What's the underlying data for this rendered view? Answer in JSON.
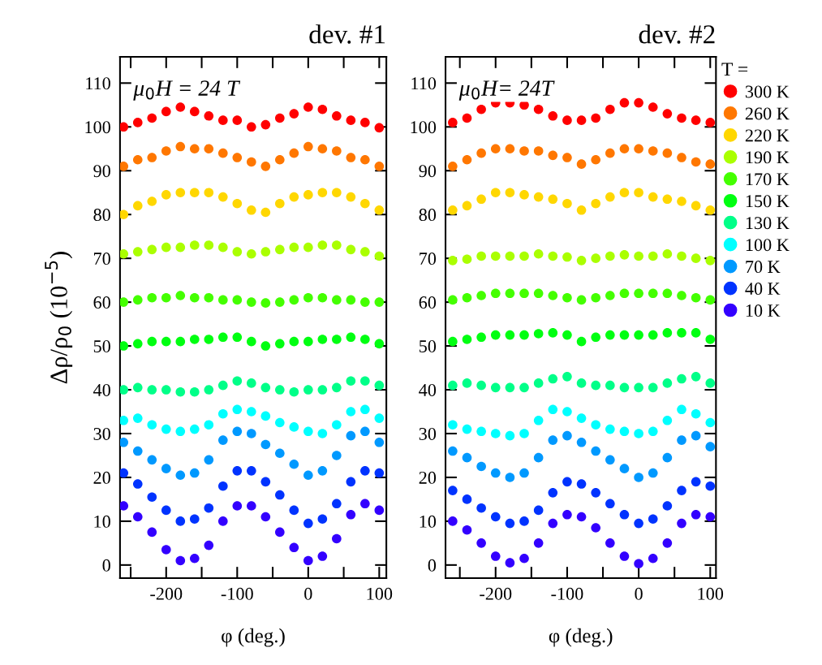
{
  "chart_data": [
    {
      "type": "scatter",
      "title": "dev. #1",
      "xlabel": "φ (deg.)",
      "ylabel": "Δρ/ρ$_{0}$ (10$^{−5}$)",
      "annotations": [
        "μ$_{0}$H = 24 T"
      ],
      "marker": "circle",
      "legend": false,
      "x": [
        -260,
        -240,
        -220,
        -200,
        -180,
        -160,
        -140,
        -120,
        -100,
        -80,
        -60,
        -40,
        -20,
        0,
        20,
        40,
        60,
        80,
        100
      ],
      "xlim": [
        -265,
        110
      ],
      "ylim": [
        -3,
        116
      ],
      "xticks": [
        {
          "value": -250,
          "label": null
        },
        -200,
        {
          "value": -150,
          "label": null
        },
        -100,
        {
          "value": -50,
          "label": null
        },
        0,
        {
          "value": 50,
          "label": null
        },
        100
      ],
      "yticks": [
        0,
        10,
        20,
        30,
        40,
        50,
        60,
        70,
        80,
        90,
        100,
        110
      ],
      "series": [
        {
          "color": "#ff0000",
          "values": [
            100,
            101,
            102,
            103.5,
            104.5,
            103.5,
            102.5,
            101.5,
            101.5,
            100,
            100.5,
            102,
            103,
            104.5,
            104,
            102.5,
            101.5,
            101,
            99.8
          ]
        },
        {
          "color": "#ff7700",
          "values": [
            91,
            92.5,
            93,
            94.5,
            95.5,
            95,
            95,
            94,
            93,
            92,
            91,
            92.5,
            94,
            95.5,
            95,
            94.5,
            93,
            92.5,
            91
          ]
        },
        {
          "color": "#ffd700",
          "values": [
            80,
            82,
            83,
            84.5,
            85,
            85,
            85,
            84,
            82.5,
            81,
            80.5,
            82.5,
            84,
            84.5,
            85,
            85,
            84,
            82.5,
            81
          ]
        },
        {
          "color": "#aaff00",
          "values": [
            71,
            71.5,
            72,
            72.5,
            72.5,
            73,
            73,
            72.5,
            71.5,
            71,
            71.5,
            72,
            72.5,
            72.5,
            73,
            73,
            72,
            71.5,
            70.5
          ]
        },
        {
          "color": "#44ff00",
          "values": [
            60,
            60.5,
            61,
            61,
            61.5,
            61,
            61,
            60.5,
            60.5,
            60,
            59.8,
            60,
            60.5,
            61,
            61,
            60.5,
            60.5,
            60,
            60
          ]
        },
        {
          "color": "#00ff11",
          "values": [
            50,
            50.5,
            51,
            51,
            51,
            51.5,
            51.5,
            52,
            52,
            51,
            50,
            50.5,
            51,
            51,
            51.5,
            51.5,
            52,
            51.5,
            50.5
          ]
        },
        {
          "color": "#00ff88",
          "values": [
            40,
            40.5,
            40,
            40,
            39.5,
            39.5,
            40,
            41,
            42,
            41.5,
            40.5,
            40,
            39.5,
            40,
            40,
            40.5,
            42,
            42,
            41
          ]
        },
        {
          "color": "#00ffff",
          "values": [
            33,
            33.5,
            32,
            31,
            30.5,
            31,
            32,
            34.5,
            35.5,
            35,
            34,
            32.5,
            31.5,
            30.5,
            30,
            32,
            35,
            35.5,
            33.5
          ]
        },
        {
          "color": "#0099ff",
          "values": [
            28,
            26,
            24,
            22,
            20.5,
            21,
            24,
            28.5,
            30.5,
            30,
            27.5,
            25.5,
            23,
            20.5,
            21.5,
            25,
            29.5,
            30.5,
            28
          ]
        },
        {
          "color": "#0033ff",
          "values": [
            21,
            18.5,
            15.5,
            12.5,
            10,
            10.5,
            13,
            18,
            21.5,
            21.5,
            19,
            16,
            12.5,
            9.5,
            10.5,
            14,
            19,
            21.5,
            21
          ]
        },
        {
          "color": "#3300ff",
          "values": [
            13.5,
            11,
            7.5,
            3.5,
            1,
            1.5,
            4.5,
            10,
            13.5,
            13.5,
            11,
            7.5,
            4,
            1,
            2,
            6,
            11.5,
            14,
            12.5
          ]
        }
      ]
    },
    {
      "type": "scatter",
      "title": "dev. #2",
      "xlabel": "φ (deg.)",
      "annotations": [
        "μ$_{0}$H= 24T"
      ],
      "marker": "circle",
      "legend": "right",
      "legend_title": "T =",
      "x": [
        -260,
        -240,
        -220,
        -200,
        -180,
        -160,
        -140,
        -120,
        -100,
        -80,
        -60,
        -40,
        -20,
        0,
        20,
        40,
        60,
        80,
        100
      ],
      "xlim": [
        -270,
        108
      ],
      "ylim": [
        -3,
        116
      ],
      "xticks": [
        {
          "value": -250,
          "label": null
        },
        -200,
        {
          "value": -150,
          "label": null
        },
        -100,
        {
          "value": -50,
          "label": null
        },
        0,
        {
          "value": 50,
          "label": null
        },
        100
      ],
      "yticks": [
        0,
        10,
        20,
        30,
        40,
        50,
        60,
        70,
        80,
        90,
        100,
        110
      ],
      "series": [
        {
          "name": "300 K",
          "color": "#ff0000",
          "values": [
            101,
            102,
            104,
            105.5,
            105.5,
            105,
            104,
            102.5,
            101.5,
            101.5,
            102,
            104,
            105.5,
            105.5,
            104.5,
            103,
            102,
            101.5,
            101
          ]
        },
        {
          "name": "260 K",
          "color": "#ff7700",
          "values": [
            91,
            92.5,
            94,
            95,
            95,
            94.5,
            94.5,
            93.5,
            93,
            91.5,
            92.5,
            94,
            95,
            95,
            94.5,
            94,
            93,
            92,
            91.5
          ]
        },
        {
          "name": "220 K",
          "color": "#ffd700",
          "values": [
            81,
            82,
            83.5,
            85,
            85,
            84.5,
            84,
            83.5,
            82.5,
            81,
            82.5,
            84,
            85,
            85,
            84,
            83.5,
            83,
            82,
            81
          ]
        },
        {
          "name": "190 K",
          "color": "#aaff00",
          "values": [
            69.5,
            69.8,
            70.5,
            70.5,
            70.5,
            70.5,
            71,
            70.5,
            70.3,
            69.5,
            70,
            70.5,
            70.8,
            70.5,
            70.5,
            71,
            70.5,
            70,
            69.5
          ]
        },
        {
          "name": "170 K",
          "color": "#44ff00",
          "values": [
            60.5,
            61,
            61.5,
            62,
            62,
            62,
            62,
            61.5,
            61,
            60.5,
            61,
            61.5,
            62,
            62,
            62,
            62,
            61.5,
            61,
            60.5
          ]
        },
        {
          "name": "150 K",
          "color": "#00ff11",
          "values": [
            51,
            51.5,
            52,
            52.5,
            52.5,
            52.5,
            52.8,
            53,
            52.5,
            51,
            52,
            52.5,
            52.5,
            52.5,
            52.5,
            53,
            53,
            53,
            51.5
          ]
        },
        {
          "name": "130 K",
          "color": "#00ff88",
          "values": [
            41,
            41.5,
            41,
            40.5,
            40.5,
            40.5,
            41.5,
            42.5,
            43,
            41.5,
            41,
            41,
            40.5,
            40.5,
            40.5,
            41.5,
            42.5,
            43,
            41.5
          ]
        },
        {
          "name": "100 K",
          "color": "#00ffff",
          "values": [
            32,
            31,
            30.5,
            30,
            29.5,
            30,
            33,
            35.5,
            35,
            33.5,
            32,
            31,
            30.5,
            30,
            30.5,
            33,
            35.5,
            34.5,
            32.5
          ]
        },
        {
          "name": "70 K",
          "color": "#0099ff",
          "values": [
            26,
            24.5,
            22.5,
            21,
            20,
            21,
            24.5,
            28.5,
            29.5,
            28,
            26,
            24,
            22,
            20,
            21,
            24.5,
            28.5,
            29.5,
            27
          ]
        },
        {
          "name": "40 K",
          "color": "#0033ff",
          "values": [
            17,
            15,
            13,
            11,
            9.5,
            10,
            12.5,
            16.5,
            19,
            18.5,
            16.5,
            14,
            11.5,
            9.5,
            10.5,
            13.5,
            17,
            19,
            18
          ]
        },
        {
          "name": "10 K",
          "color": "#3300ff",
          "values": [
            10,
            8,
            5,
            2,
            0.5,
            1.5,
            5,
            9.5,
            11.5,
            11,
            8.5,
            5,
            2,
            0.3,
            1.5,
            5,
            9.5,
            11.5,
            11
          ]
        }
      ]
    }
  ]
}
